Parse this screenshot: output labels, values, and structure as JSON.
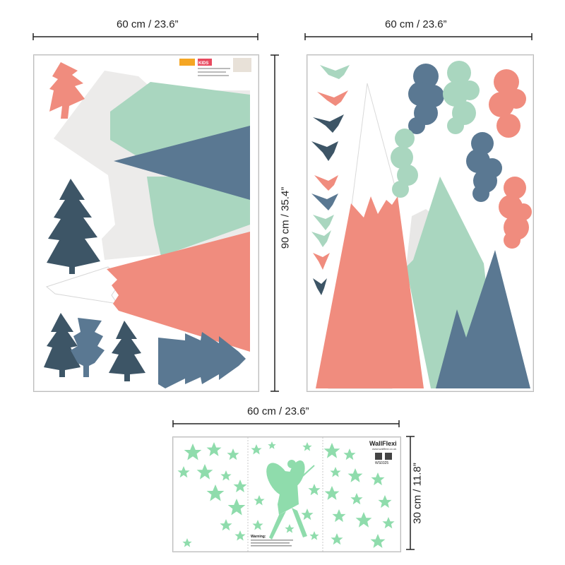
{
  "dimensions": {
    "sheet1_width": "60 cm / 23.6”",
    "sheet2_width": "60 cm / 23.6”",
    "height": "90 cm / 35.4”",
    "glow_width": "60 cm / 23.6”",
    "glow_height": "30 cm / 11.8”"
  },
  "labels": {
    "kids_logo": "KIDS",
    "product_code": "WS0325",
    "brand": "WallFlexi",
    "brand_url": "www.wallflexi.co.uk",
    "warning_title": "Warning:"
  },
  "colors": {
    "coral": "#f08c7e",
    "mint": "#a9d6bf",
    "slate": "#5a7892",
    "navy": "#3d5566",
    "grey": "#ecebea",
    "glow": "#8fdcac"
  }
}
